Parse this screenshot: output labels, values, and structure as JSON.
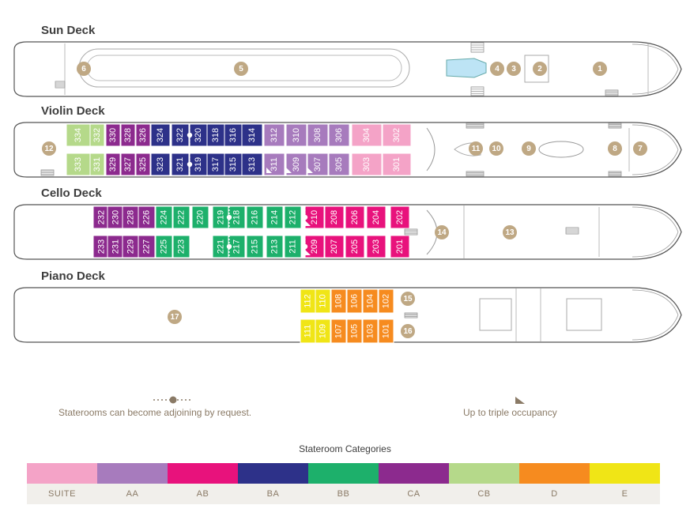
{
  "decks": {
    "sun": "Sun Deck",
    "violin": "Violin Deck",
    "cello": "Cello Deck",
    "piano": "Piano Deck"
  },
  "categories_title": "Stateroom Categories",
  "categories": [
    {
      "code": "SUITE",
      "color": "#f4a3c7"
    },
    {
      "code": "AA",
      "color": "#a77bbd"
    },
    {
      "code": "AB",
      "color": "#e8127c"
    },
    {
      "code": "BA",
      "color": "#2d3189"
    },
    {
      "code": "BB",
      "color": "#1db06b"
    },
    {
      "code": "CA",
      "color": "#8c2a8e"
    },
    {
      "code": "CB",
      "color": "#b5d98a"
    },
    {
      "code": "D",
      "color": "#f68b1f"
    },
    {
      "code": "E",
      "color": "#f0e516"
    }
  ],
  "legend": {
    "adjoining": "Staterooms can become adjoining by request.",
    "triple": "Up to triple occupancy"
  },
  "amenity_markers": [
    "1",
    "2",
    "3",
    "4",
    "5",
    "6",
    "7",
    "8",
    "9",
    "10",
    "11",
    "12",
    "13",
    "14",
    "15",
    "16",
    "17"
  ],
  "staterooms": {
    "violin_top": [
      "334",
      "332",
      "330",
      "328",
      "326",
      "324",
      "322",
      "320",
      "318",
      "316",
      "314",
      "312",
      "310",
      "308",
      "306",
      "304",
      "302"
    ],
    "violin_bottom": [
      "333",
      "331",
      "329",
      "327",
      "325",
      "323",
      "321",
      "319",
      "317",
      "315",
      "313",
      "311",
      "309",
      "307",
      "305",
      "303",
      "301"
    ],
    "cello_top": [
      "232",
      "230",
      "228",
      "226",
      "224",
      "222",
      "220",
      "219",
      "218",
      "216",
      "214",
      "212",
      "210",
      "208",
      "206",
      "204",
      "202"
    ],
    "cello_bottom": [
      "233",
      "231",
      "229",
      "227",
      "225",
      "223",
      "221",
      "217",
      "215",
      "213",
      "211",
      "209",
      "207",
      "205",
      "203",
      "201"
    ],
    "piano_top": [
      "112",
      "110",
      "108",
      "106",
      "104",
      "102"
    ],
    "piano_bottom": [
      "111",
      "109",
      "107",
      "105",
      "103",
      "101"
    ]
  }
}
